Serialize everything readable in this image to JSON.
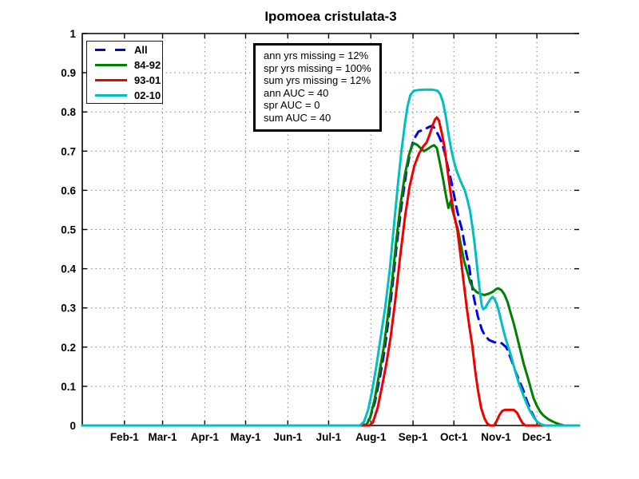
{
  "chart_data": {
    "type": "line",
    "title": "Ipomoea cristulata-3",
    "xlabel": "",
    "ylabel": "",
    "x_unit": "day-of-year",
    "xlim": [
      1,
      366
    ],
    "ylim": [
      0,
      1
    ],
    "grid": true,
    "grid_style": "dotted",
    "legend_position": "top-left",
    "x_ticks": [
      {
        "label": "Feb-1",
        "day": 32
      },
      {
        "label": "Mar-1",
        "day": 60
      },
      {
        "label": "Apr-1",
        "day": 91
      },
      {
        "label": "May-1",
        "day": 121
      },
      {
        "label": "Jun-1",
        "day": 152
      },
      {
        "label": "Jul-1",
        "day": 182
      },
      {
        "label": "Aug-1",
        "day": 213
      },
      {
        "label": "Sep-1",
        "day": 244
      },
      {
        "label": "Oct-1",
        "day": 274
      },
      {
        "label": "Nov-1",
        "day": 305
      },
      {
        "label": "Dec-1",
        "day": 335
      }
    ],
    "y_ticks": [
      {
        "label": "0",
        "value": 0
      },
      {
        "label": "0.1",
        "value": 0.1
      },
      {
        "label": "0.2",
        "value": 0.2
      },
      {
        "label": "0.3",
        "value": 0.3
      },
      {
        "label": "0.4",
        "value": 0.4
      },
      {
        "label": "0.5",
        "value": 0.5
      },
      {
        "label": "0.6",
        "value": 0.6
      },
      {
        "label": "0.7",
        "value": 0.7
      },
      {
        "label": "0.8",
        "value": 0.8
      },
      {
        "label": "0.9",
        "value": 0.9
      },
      {
        "label": "1",
        "value": 1
      }
    ],
    "annotations": [
      "ann yrs missing = 12%",
      "spr yrs missing = 100%",
      "sum yrs missing = 12%",
      "ann AUC = 40",
      "spr AUC = 0",
      "sum AUC = 40"
    ],
    "series": [
      {
        "name": "All",
        "color": "#0000EE",
        "dashed": true,
        "points": [
          [
            1,
            0
          ],
          [
            150,
            0
          ],
          [
            196,
            0
          ],
          [
            206,
            0
          ],
          [
            209.5,
            0.004
          ],
          [
            212.5,
            0.02
          ],
          [
            216,
            0.06
          ],
          [
            219.5,
            0.12
          ],
          [
            223,
            0.19
          ],
          [
            226,
            0.27
          ],
          [
            229,
            0.36
          ],
          [
            232,
            0.46
          ],
          [
            235.5,
            0.56
          ],
          [
            239,
            0.645
          ],
          [
            242,
            0.7
          ],
          [
            244.5,
            0.73
          ],
          [
            248,
            0.75
          ],
          [
            252,
            0.755
          ],
          [
            256,
            0.762
          ],
          [
            258,
            0.765
          ],
          [
            260,
            0.758
          ],
          [
            263,
            0.738
          ],
          [
            265,
            0.722
          ],
          [
            267,
            0.7
          ],
          [
            269.5,
            0.66
          ],
          [
            272,
            0.625
          ],
          [
            274,
            0.59
          ],
          [
            276,
            0.555
          ],
          [
            278,
            0.525
          ],
          [
            280,
            0.5
          ],
          [
            283,
            0.44
          ],
          [
            285.5,
            0.4
          ],
          [
            288.5,
            0.33
          ],
          [
            291.5,
            0.28
          ],
          [
            294.5,
            0.245
          ],
          [
            297,
            0.228
          ],
          [
            300,
            0.218
          ],
          [
            304,
            0.212
          ],
          [
            309,
            0.21
          ],
          [
            312.5,
            0.2
          ],
          [
            316,
            0.17
          ],
          [
            319,
            0.14
          ],
          [
            322,
            0.115
          ],
          [
            325,
            0.09
          ],
          [
            328,
            0.06
          ],
          [
            331,
            0.035
          ],
          [
            333.5,
            0.018
          ],
          [
            336.5,
            0.004
          ],
          [
            338,
            0
          ],
          [
            350,
            0
          ],
          [
            365.9,
            0
          ]
        ]
      },
      {
        "name": "84-92",
        "color": "#007F00",
        "dashed": false,
        "points": [
          [
            1,
            0
          ],
          [
            150,
            0
          ],
          [
            196,
            0
          ],
          [
            207,
            0
          ],
          [
            210,
            0.003
          ],
          [
            212.5,
            0.02
          ],
          [
            216,
            0.07
          ],
          [
            219,
            0.13
          ],
          [
            222.5,
            0.2
          ],
          [
            225.5,
            0.28
          ],
          [
            229,
            0.38
          ],
          [
            232,
            0.48
          ],
          [
            235,
            0.57
          ],
          [
            238,
            0.64
          ],
          [
            241,
            0.69
          ],
          [
            243,
            0.712
          ],
          [
            244.5,
            0.72
          ],
          [
            247,
            0.716
          ],
          [
            249.5,
            0.708
          ],
          [
            252,
            0.7
          ],
          [
            255,
            0.706
          ],
          [
            257.5,
            0.712
          ],
          [
            259.5,
            0.715
          ],
          [
            261.5,
            0.708
          ],
          [
            264,
            0.665
          ],
          [
            266,
            0.63
          ],
          [
            268,
            0.59
          ],
          [
            270,
            0.555
          ],
          [
            272,
            0.575
          ],
          [
            272.5,
            0.555
          ],
          [
            274.5,
            0.53
          ],
          [
            277,
            0.5
          ],
          [
            279.5,
            0.455
          ],
          [
            281.5,
            0.42
          ],
          [
            284,
            0.39
          ],
          [
            286,
            0.365
          ],
          [
            288.5,
            0.348
          ],
          [
            291,
            0.34
          ],
          [
            294,
            0.335
          ],
          [
            296.5,
            0.333
          ],
          [
            299.5,
            0.336
          ],
          [
            303,
            0.342
          ],
          [
            305,
            0.348
          ],
          [
            306.5,
            0.35
          ],
          [
            309,
            0.345
          ],
          [
            311,
            0.335
          ],
          [
            313.5,
            0.315
          ],
          [
            315.5,
            0.29
          ],
          [
            318,
            0.26
          ],
          [
            320.5,
            0.225
          ],
          [
            323,
            0.19
          ],
          [
            325.5,
            0.155
          ],
          [
            328.5,
            0.12
          ],
          [
            330.5,
            0.095
          ],
          [
            332.5,
            0.07
          ],
          [
            335,
            0.05
          ],
          [
            337.5,
            0.035
          ],
          [
            340,
            0.025
          ],
          [
            343,
            0.017
          ],
          [
            346,
            0.011
          ],
          [
            349.5,
            0.006
          ],
          [
            352.5,
            0.002
          ],
          [
            355,
            0
          ],
          [
            365.9,
            0
          ]
        ]
      },
      {
        "name": "93-01",
        "color": "#EE0000",
        "dashed": false,
        "points": [
          [
            1,
            0
          ],
          [
            150,
            0
          ],
          [
            200,
            0
          ],
          [
            212,
            0
          ],
          [
            214.5,
            0.008
          ],
          [
            218,
            0.045
          ],
          [
            221.5,
            0.105
          ],
          [
            224.5,
            0.16
          ],
          [
            227.5,
            0.225
          ],
          [
            231,
            0.32
          ],
          [
            234.5,
            0.43
          ],
          [
            238,
            0.53
          ],
          [
            241.5,
            0.61
          ],
          [
            245,
            0.663
          ],
          [
            248.5,
            0.695
          ],
          [
            251.5,
            0.712
          ],
          [
            254,
            0.722
          ],
          [
            256,
            0.74
          ],
          [
            258,
            0.762
          ],
          [
            260,
            0.78
          ],
          [
            261.5,
            0.786
          ],
          [
            263,
            0.778
          ],
          [
            265,
            0.748
          ],
          [
            267,
            0.712
          ],
          [
            269,
            0.66
          ],
          [
            271.5,
            0.595
          ],
          [
            274,
            0.54
          ],
          [
            276.5,
            0.5
          ],
          [
            278.5,
            0.445
          ],
          [
            281,
            0.37
          ],
          [
            283.5,
            0.3
          ],
          [
            285.5,
            0.25
          ],
          [
            287.5,
            0.205
          ],
          [
            289.5,
            0.145
          ],
          [
            291.5,
            0.095
          ],
          [
            294,
            0.045
          ],
          [
            296.5,
            0.018
          ],
          [
            298.5,
            0.005
          ],
          [
            300.5,
            0
          ],
          [
            303.5,
            0
          ],
          [
            305.5,
            0.012
          ],
          [
            307.5,
            0.027
          ],
          [
            309.5,
            0.037
          ],
          [
            311.5,
            0.04
          ],
          [
            318,
            0.04
          ],
          [
            320.5,
            0.032
          ],
          [
            322.5,
            0.018
          ],
          [
            324.5,
            0.006
          ],
          [
            326.5,
            0
          ],
          [
            340,
            0
          ],
          [
            365.9,
            0
          ]
        ]
      },
      {
        "name": "02-10",
        "color": "#00BFBF",
        "dashed": false,
        "points": [
          [
            1,
            0
          ],
          [
            150,
            0
          ],
          [
            196,
            0
          ],
          [
            205,
            0
          ],
          [
            208,
            0.01
          ],
          [
            211,
            0.04
          ],
          [
            214,
            0.09
          ],
          [
            217,
            0.15
          ],
          [
            220,
            0.22
          ],
          [
            223.5,
            0.3
          ],
          [
            227,
            0.4
          ],
          [
            230,
            0.51
          ],
          [
            233,
            0.62
          ],
          [
            235.5,
            0.7
          ],
          [
            238,
            0.77
          ],
          [
            240,
            0.815
          ],
          [
            242,
            0.843
          ],
          [
            244.5,
            0.854
          ],
          [
            248,
            0.856
          ],
          [
            253,
            0.857
          ],
          [
            258,
            0.857
          ],
          [
            262,
            0.854
          ],
          [
            264,
            0.845
          ],
          [
            266,
            0.825
          ],
          [
            268,
            0.79
          ],
          [
            270,
            0.745
          ],
          [
            272,
            0.705
          ],
          [
            274,
            0.675
          ],
          [
            276,
            0.65
          ],
          [
            278,
            0.632
          ],
          [
            280,
            0.615
          ],
          [
            282,
            0.6
          ],
          [
            284,
            0.575
          ],
          [
            286,
            0.545
          ],
          [
            287.5,
            0.51
          ],
          [
            289,
            0.47
          ],
          [
            290.5,
            0.425
          ],
          [
            292,
            0.375
          ],
          [
            293.5,
            0.33
          ],
          [
            294.5,
            0.305
          ],
          [
            295.5,
            0.297
          ],
          [
            297,
            0.3
          ],
          [
            299,
            0.312
          ],
          [
            301,
            0.323
          ],
          [
            302.5,
            0.328
          ],
          [
            304,
            0.322
          ],
          [
            305.5,
            0.31
          ],
          [
            307,
            0.292
          ],
          [
            308.5,
            0.27
          ],
          [
            310,
            0.248
          ],
          [
            312,
            0.222
          ],
          [
            314,
            0.2
          ],
          [
            316,
            0.178
          ],
          [
            318,
            0.152
          ],
          [
            320,
            0.128
          ],
          [
            322,
            0.105
          ],
          [
            324.5,
            0.082
          ],
          [
            327,
            0.06
          ],
          [
            329.5,
            0.04
          ],
          [
            331.5,
            0.028
          ],
          [
            333.5,
            0.017
          ],
          [
            335.5,
            0.009
          ],
          [
            338,
            0.003
          ],
          [
            341,
            0
          ],
          [
            355,
            0
          ],
          [
            365.9,
            0
          ]
        ]
      }
    ]
  }
}
